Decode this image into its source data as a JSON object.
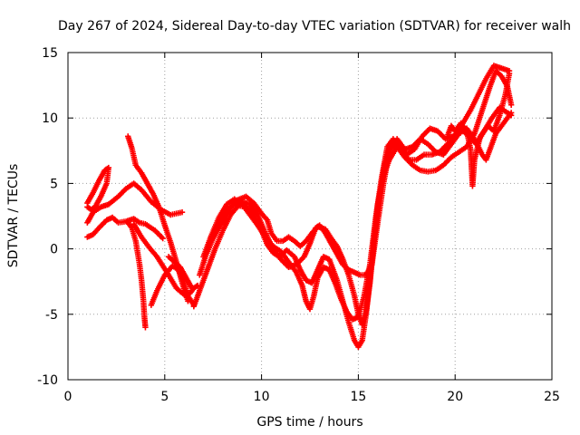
{
  "chart_data": {
    "type": "scatter",
    "title": "Day 267 of 2024, Sidereal Day-to-day VTEC variation (SDTVAR) for receiver walh",
    "xlabel": "GPS time / hours",
    "ylabel": "SDTVAR / TECUs",
    "xlim": [
      0,
      25
    ],
    "ylim": [
      -10,
      15
    ],
    "xticks": [
      "0",
      "5",
      "10",
      "15",
      "20",
      "25"
    ],
    "yticks": [
      "-10",
      "-5",
      "0",
      "5",
      "10",
      "15"
    ],
    "grid": true,
    "marker": "plus",
    "color": "#ff0000",
    "series": [
      {
        "points": [
          [
            1.0,
            3.5
          ],
          [
            1.3,
            4.3
          ],
          [
            1.6,
            5.2
          ],
          [
            1.9,
            6.0
          ],
          [
            2.1,
            6.2
          ],
          [
            2.0,
            5.0
          ],
          [
            1.7,
            4.0
          ],
          [
            1.4,
            3.2
          ],
          [
            1.2,
            3.0
          ],
          [
            1.0,
            3.2
          ]
        ]
      },
      {
        "points": [
          [
            1.0,
            2.0
          ],
          [
            1.3,
            2.8
          ],
          [
            1.7,
            3.2
          ],
          [
            2.1,
            3.4
          ],
          [
            2.6,
            4.0
          ],
          [
            3.0,
            4.6
          ],
          [
            3.4,
            5.0
          ],
          [
            3.8,
            4.5
          ],
          [
            4.3,
            3.6
          ],
          [
            4.8,
            3.0
          ],
          [
            5.3,
            2.6
          ],
          [
            5.9,
            2.8
          ]
        ]
      },
      {
        "points": [
          [
            1.0,
            0.9
          ],
          [
            1.3,
            1.1
          ],
          [
            1.6,
            1.6
          ],
          [
            2.0,
            2.2
          ],
          [
            2.3,
            2.4
          ],
          [
            2.6,
            2.0
          ],
          [
            3.0,
            2.1
          ],
          [
            3.4,
            2.3
          ],
          [
            3.7,
            2.0
          ],
          [
            4.0,
            1.9
          ],
          [
            4.5,
            1.4
          ],
          [
            4.9,
            0.8
          ]
        ]
      },
      {
        "points": [
          [
            3.1,
            8.6
          ],
          [
            3.3,
            7.7
          ],
          [
            3.5,
            6.4
          ],
          [
            3.8,
            5.8
          ],
          [
            4.1,
            5.0
          ],
          [
            4.4,
            4.2
          ],
          [
            4.7,
            3.2
          ],
          [
            5.0,
            1.8
          ],
          [
            5.3,
            0.5
          ],
          [
            5.6,
            -1.0
          ],
          [
            5.9,
            -2.6
          ],
          [
            6.2,
            -4.0
          ]
        ]
      },
      {
        "points": [
          [
            3.1,
            2.0
          ],
          [
            3.3,
            1.6
          ],
          [
            3.5,
            0.6
          ],
          [
            3.7,
            -1.2
          ],
          [
            3.8,
            -2.4
          ],
          [
            3.9,
            -4.0
          ],
          [
            3.95,
            -5.2
          ],
          [
            4.0,
            -6.0
          ]
        ]
      },
      {
        "points": [
          [
            3.4,
            1.9
          ],
          [
            3.8,
            0.9
          ],
          [
            4.2,
            0.1
          ],
          [
            4.6,
            -0.6
          ],
          [
            4.9,
            -1.3
          ],
          [
            5.2,
            -2.0
          ],
          [
            5.6,
            -3.0
          ],
          [
            6.0,
            -3.5
          ],
          [
            6.3,
            -3.4
          ],
          [
            6.5,
            -3.0
          ],
          [
            6.7,
            -2.8
          ]
        ]
      },
      {
        "points": [
          [
            4.3,
            -4.3
          ],
          [
            4.6,
            -3.2
          ],
          [
            5.0,
            -2.0
          ],
          [
            5.4,
            -1.3
          ],
          [
            5.7,
            -1.6
          ],
          [
            6.0,
            -2.6
          ],
          [
            6.2,
            -3.6
          ],
          [
            6.5,
            -4.3
          ]
        ]
      },
      {
        "points": [
          [
            5.2,
            -0.6
          ],
          [
            5.5,
            -1.0
          ],
          [
            5.8,
            -1.4
          ],
          [
            6.1,
            -2.2
          ],
          [
            6.4,
            -3.0
          ]
        ]
      },
      {
        "points": [
          [
            6.8,
            -2.0
          ],
          [
            7.1,
            -0.6
          ],
          [
            7.5,
            0.8
          ],
          [
            7.9,
            1.9
          ],
          [
            8.3,
            2.9
          ],
          [
            8.7,
            3.7
          ],
          [
            9.2,
            4.0
          ],
          [
            9.6,
            3.5
          ],
          [
            10.0,
            2.7
          ],
          [
            10.3,
            2.2
          ],
          [
            10.5,
            1.2
          ],
          [
            10.8,
            0.6
          ],
          [
            11.1,
            0.6
          ],
          [
            11.4,
            0.9
          ],
          [
            11.7,
            0.6
          ],
          [
            12.0,
            0.2
          ],
          [
            12.3,
            0.6
          ],
          [
            12.6,
            1.2
          ],
          [
            12.9,
            1.7
          ],
          [
            13.3,
            1.5
          ],
          [
            13.6,
            0.8
          ],
          [
            13.9,
            0.2
          ],
          [
            14.2,
            -0.8
          ],
          [
            14.5,
            -2.0
          ],
          [
            14.8,
            -3.6
          ],
          [
            15.0,
            -5.0
          ],
          [
            15.2,
            -5.8
          ],
          [
            15.4,
            -4.8
          ],
          [
            15.6,
            -2.6
          ],
          [
            15.8,
            0.5
          ],
          [
            16.1,
            4.0
          ],
          [
            16.4,
            6.8
          ],
          [
            16.7,
            8.0
          ],
          [
            17.1,
            8.0
          ],
          [
            17.5,
            7.2
          ],
          [
            17.9,
            7.6
          ],
          [
            18.3,
            8.6
          ],
          [
            18.7,
            9.2
          ],
          [
            19.1,
            9.0
          ],
          [
            19.5,
            8.4
          ],
          [
            19.9,
            8.6
          ],
          [
            20.3,
            9.2
          ],
          [
            20.7,
            8.6
          ],
          [
            21.1,
            8.0
          ],
          [
            21.5,
            9.0
          ],
          [
            21.9,
            10.0
          ],
          [
            22.3,
            10.8
          ],
          [
            22.7,
            10.4
          ],
          [
            22.9,
            10.2
          ]
        ]
      },
      {
        "points": [
          [
            6.5,
            -4.4
          ],
          [
            6.8,
            -3.2
          ],
          [
            7.2,
            -1.6
          ],
          [
            7.6,
            0.0
          ],
          [
            8.0,
            1.4
          ],
          [
            8.4,
            2.6
          ],
          [
            8.8,
            3.3
          ],
          [
            9.2,
            3.2
          ],
          [
            9.6,
            2.6
          ],
          [
            10.0,
            1.4
          ],
          [
            10.3,
            0.3
          ],
          [
            10.6,
            -0.3
          ],
          [
            10.9,
            -0.6
          ],
          [
            11.3,
            -0.1
          ],
          [
            11.7,
            -0.6
          ],
          [
            12.0,
            -1.6
          ],
          [
            12.3,
            -2.4
          ],
          [
            12.6,
            -2.6
          ],
          [
            12.9,
            -1.6
          ],
          [
            13.2,
            -0.6
          ],
          [
            13.5,
            -0.8
          ],
          [
            13.9,
            -2.4
          ],
          [
            14.2,
            -4.0
          ],
          [
            14.5,
            -5.6
          ],
          [
            14.8,
            -7.0
          ],
          [
            15.0,
            -7.5
          ],
          [
            15.2,
            -7.0
          ],
          [
            15.4,
            -5.0
          ],
          [
            15.6,
            -2.4
          ],
          [
            15.8,
            0.6
          ],
          [
            16.0,
            3.4
          ],
          [
            16.3,
            5.6
          ],
          [
            16.6,
            6.8
          ],
          [
            17.0,
            7.8
          ],
          [
            17.4,
            7.0
          ],
          [
            17.8,
            6.4
          ],
          [
            18.2,
            6.0
          ],
          [
            18.6,
            5.9
          ],
          [
            19.0,
            6.0
          ],
          [
            19.4,
            6.4
          ],
          [
            19.8,
            7.0
          ],
          [
            20.2,
            7.4
          ],
          [
            20.6,
            7.8
          ],
          [
            21.0,
            8.8
          ],
          [
            21.4,
            10.6
          ],
          [
            21.8,
            12.4
          ],
          [
            22.1,
            13.6
          ],
          [
            22.4,
            13.2
          ],
          [
            22.7,
            12.4
          ],
          [
            22.9,
            11.0
          ]
        ]
      },
      {
        "points": [
          [
            7.0,
            -0.6
          ],
          [
            7.4,
            1.0
          ],
          [
            7.8,
            2.4
          ],
          [
            8.2,
            3.4
          ],
          [
            8.6,
            3.8
          ],
          [
            9.0,
            3.4
          ],
          [
            9.4,
            2.6
          ],
          [
            9.8,
            1.8
          ],
          [
            10.2,
            0.9
          ],
          [
            10.6,
            0.2
          ],
          [
            11.0,
            -0.2
          ],
          [
            11.4,
            -1.0
          ],
          [
            11.8,
            -1.8
          ],
          [
            12.1,
            -2.8
          ],
          [
            12.3,
            -4.0
          ],
          [
            12.5,
            -4.6
          ],
          [
            12.7,
            -3.6
          ],
          [
            12.9,
            -2.2
          ],
          [
            13.2,
            -1.4
          ],
          [
            13.5,
            -1.6
          ],
          [
            13.8,
            -2.6
          ],
          [
            14.1,
            -3.8
          ],
          [
            14.4,
            -4.8
          ],
          [
            14.7,
            -5.4
          ],
          [
            15.0,
            -5.2
          ],
          [
            15.3,
            -3.6
          ],
          [
            15.6,
            -1.2
          ],
          [
            15.9,
            2.4
          ],
          [
            16.2,
            5.4
          ],
          [
            16.5,
            7.8
          ],
          [
            16.8,
            8.4
          ],
          [
            17.2,
            7.6
          ],
          [
            17.6,
            6.8
          ],
          [
            18.0,
            6.8
          ],
          [
            18.4,
            7.2
          ],
          [
            18.8,
            7.2
          ],
          [
            19.2,
            7.4
          ],
          [
            19.6,
            8.0
          ],
          [
            20.0,
            8.6
          ],
          [
            20.4,
            9.6
          ],
          [
            20.8,
            10.6
          ],
          [
            21.2,
            11.8
          ],
          [
            21.6,
            13.0
          ],
          [
            22.0,
            14.0
          ],
          [
            22.4,
            13.8
          ],
          [
            22.8,
            13.6
          ]
        ]
      },
      {
        "points": [
          [
            7.4,
            0.8
          ],
          [
            7.8,
            2.0
          ],
          [
            8.2,
            3.0
          ],
          [
            8.6,
            3.4
          ],
          [
            9.0,
            3.6
          ],
          [
            9.4,
            3.4
          ],
          [
            9.8,
            2.6
          ],
          [
            10.2,
            1.2
          ],
          [
            10.6,
            0.0
          ],
          [
            11.0,
            -0.8
          ],
          [
            11.4,
            -1.4
          ],
          [
            11.8,
            -1.2
          ],
          [
            12.2,
            -0.6
          ],
          [
            12.5,
            0.4
          ],
          [
            12.8,
            1.6
          ],
          [
            13.0,
            1.8
          ],
          [
            13.3,
            1.2
          ],
          [
            13.6,
            0.4
          ],
          [
            13.9,
            -0.4
          ],
          [
            14.2,
            -1.2
          ],
          [
            14.5,
            -1.6
          ],
          [
            14.8,
            -1.8
          ],
          [
            15.1,
            -2.0
          ],
          [
            15.4,
            -2.0
          ],
          [
            15.7,
            -1.2
          ],
          [
            16.0,
            2.0
          ],
          [
            16.3,
            5.0
          ],
          [
            16.6,
            7.4
          ],
          [
            17.0,
            8.4
          ],
          [
            17.4,
            7.6
          ],
          [
            17.8,
            7.8
          ],
          [
            18.2,
            8.4
          ],
          [
            18.6,
            8.0
          ],
          [
            19.0,
            7.4
          ],
          [
            19.4,
            7.2
          ],
          [
            19.8,
            8.0
          ],
          [
            20.2,
            8.8
          ],
          [
            20.6,
            9.2
          ],
          [
            21.0,
            8.4
          ],
          [
            21.4,
            7.2
          ],
          [
            21.6,
            6.8
          ],
          [
            21.8,
            7.6
          ],
          [
            22.1,
            8.8
          ],
          [
            22.5,
            9.6
          ],
          [
            22.9,
            10.4
          ]
        ]
      },
      {
        "points": [
          [
            19.6,
            8.6
          ],
          [
            19.8,
            9.4
          ],
          [
            20.0,
            9.0
          ],
          [
            20.3,
            9.6
          ],
          [
            20.6,
            9.0
          ],
          [
            20.8,
            7.6
          ],
          [
            20.85,
            6.2
          ],
          [
            20.9,
            4.8
          ],
          [
            21.0,
            6.8
          ],
          [
            21.3,
            8.6
          ],
          [
            21.7,
            9.4
          ],
          [
            22.0,
            9.0
          ],
          [
            22.3,
            10.2
          ],
          [
            22.6,
            11.8
          ],
          [
            22.8,
            13.4
          ]
        ]
      }
    ]
  }
}
